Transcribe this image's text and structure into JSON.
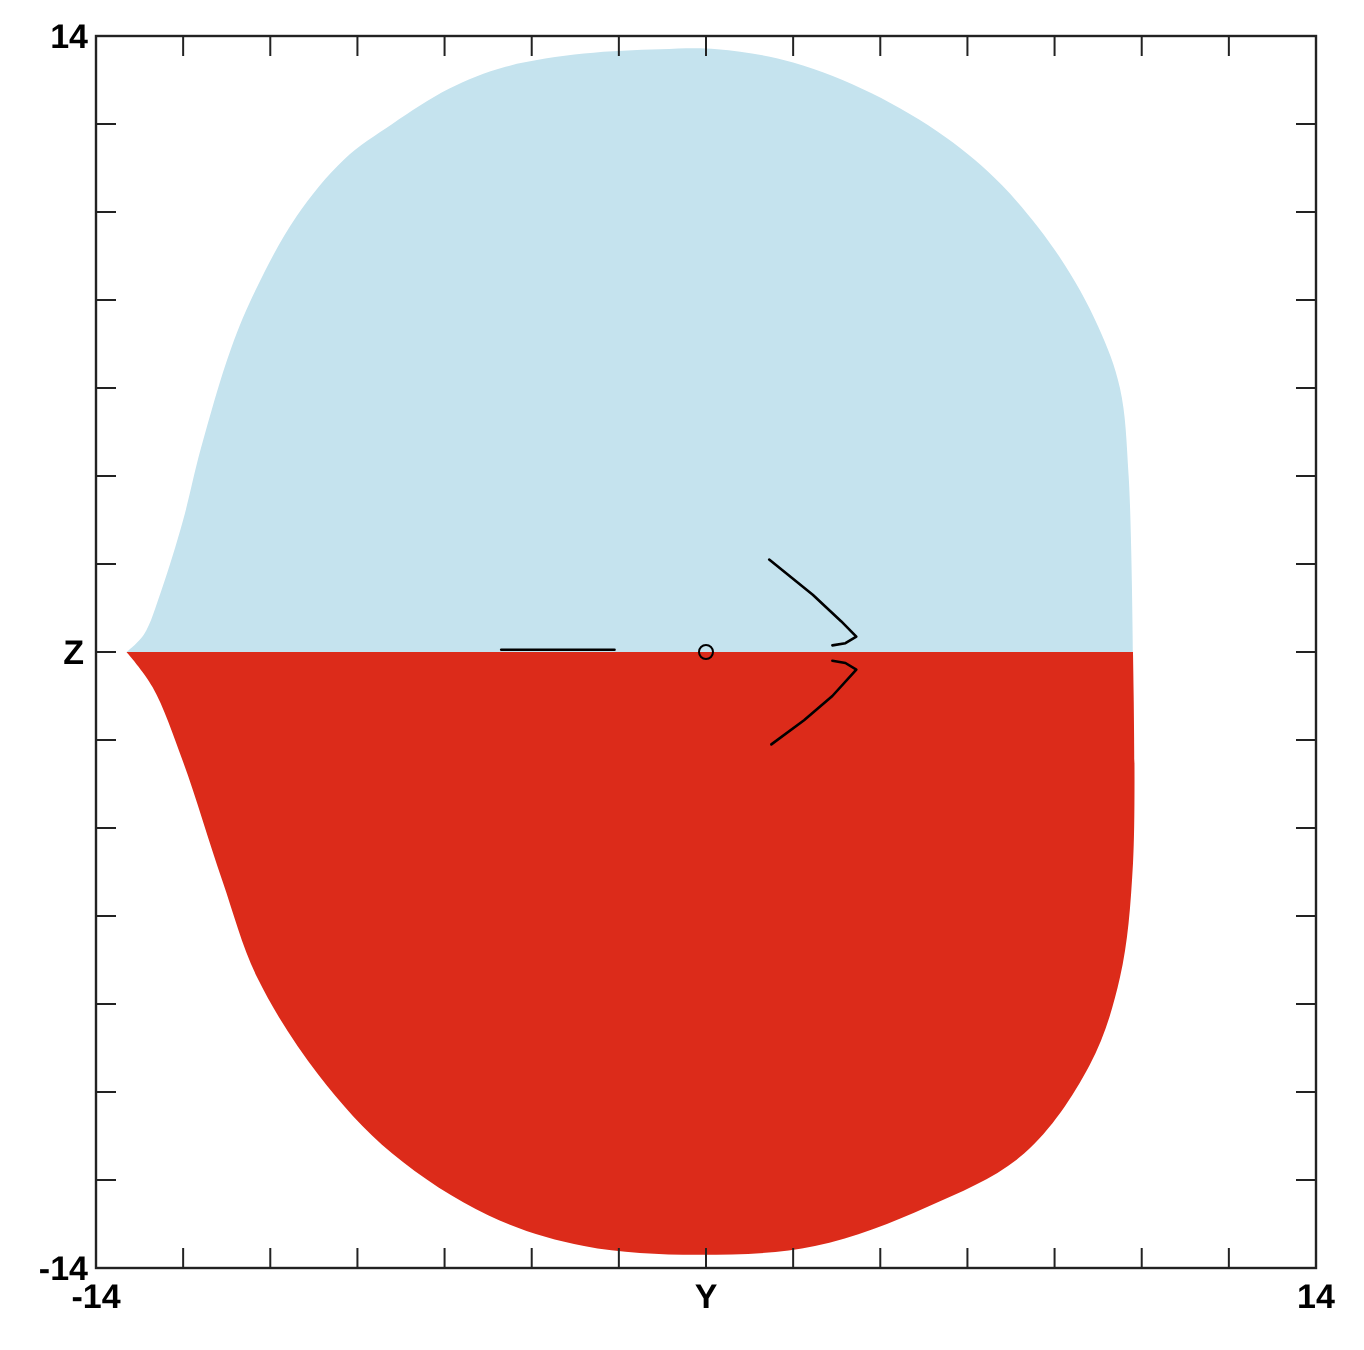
{
  "chart_data": {
    "type": "area",
    "xlabel": "Y",
    "ylabel": "Z",
    "xlim": [
      -14,
      14
    ],
    "ylim": [
      -14,
      14
    ],
    "xticks": [
      -14,
      {
        "value": -12,
        "label": null
      },
      {
        "value": -10,
        "label": null
      },
      {
        "value": -8,
        "label": null
      },
      {
        "value": -6,
        "label": null
      },
      {
        "value": -4,
        "label": null
      },
      {
        "value": -2,
        "label": null
      },
      {
        "value": 0,
        "label": null
      },
      {
        "value": 2,
        "label": null
      },
      {
        "value": 4,
        "label": null
      },
      {
        "value": 6,
        "label": null
      },
      {
        "value": 8,
        "label": null
      },
      {
        "value": 10,
        "label": null
      },
      {
        "value": 12,
        "label": null
      },
      14
    ],
    "yticks": [
      -14,
      {
        "value": -12,
        "label": null
      },
      {
        "value": -10,
        "label": null
      },
      {
        "value": -8,
        "label": null
      },
      {
        "value": -6,
        "label": null
      },
      {
        "value": -4,
        "label": null
      },
      {
        "value": -2,
        "label": null
      },
      {
        "value": 0,
        "label": null
      },
      {
        "value": 2,
        "label": null
      },
      {
        "value": 4,
        "label": null
      },
      {
        "value": 6,
        "label": null
      },
      {
        "value": 8,
        "label": null
      },
      {
        "value": 10,
        "label": null
      },
      {
        "value": 12,
        "label": null
      },
      14
    ],
    "series": [
      {
        "color": "#c5e3ee",
        "x": [
          -13.3,
          -12.9,
          -12.5,
          -12.0,
          -11.6,
          -10.9,
          -10.3,
          -9.4,
          -8.3,
          -7.2,
          -5.9,
          -4.6,
          -2.8,
          -1.05,
          0.26,
          2.0,
          3.8,
          5.5,
          6.8,
          8.1,
          9.0,
          9.5,
          9.7,
          9.8
        ],
        "values": [
          0,
          0.4,
          1.4,
          3.0,
          4.6,
          6.9,
          8.3,
          9.9,
          11.2,
          12.0,
          12.8,
          13.3,
          13.6,
          13.7,
          13.7,
          13.4,
          12.7,
          11.7,
          10.6,
          9.0,
          7.4,
          6.0,
          4.0,
          0
        ]
      },
      {
        "color": "#dc2b1a",
        "x": [
          -13.3,
          -12.7,
          -12.0,
          -11.1,
          -10.3,
          -8.9,
          -7.2,
          -5.0,
          -2.8,
          -0.2,
          2.5,
          5.1,
          7.3,
          8.8,
          9.5,
          9.8,
          9.8
        ],
        "values": [
          0,
          -0.8,
          -2.5,
          -5.2,
          -7.4,
          -9.6,
          -11.4,
          -12.8,
          -13.5,
          -13.7,
          -13.5,
          -12.6,
          -11.4,
          -9.4,
          -7.4,
          -4.8,
          0
        ]
      },
      {
        "type": "line",
        "color": "#000000",
        "x": [
          -4.7,
          -2.1
        ],
        "values": [
          0.05,
          0.05
        ]
      },
      {
        "type": "line",
        "color": "#000000",
        "x": [
          1.45,
          2.45,
          3.1,
          3.45,
          3.2,
          2.9
        ],
        "values": [
          2.1,
          1.3,
          0.7,
          0.35,
          0.2,
          0.15
        ]
      },
      {
        "type": "line",
        "color": "#000000",
        "x": [
          2.9,
          3.2,
          3.45,
          2.9,
          2.25,
          1.5
        ],
        "values": [
          -0.2,
          -0.25,
          -0.4,
          -1.0,
          -1.55,
          -2.1
        ]
      },
      {
        "type": "scatter",
        "color": "#000000",
        "marker": "circle",
        "x": [
          0
        ],
        "values": [
          0
        ]
      }
    ]
  }
}
